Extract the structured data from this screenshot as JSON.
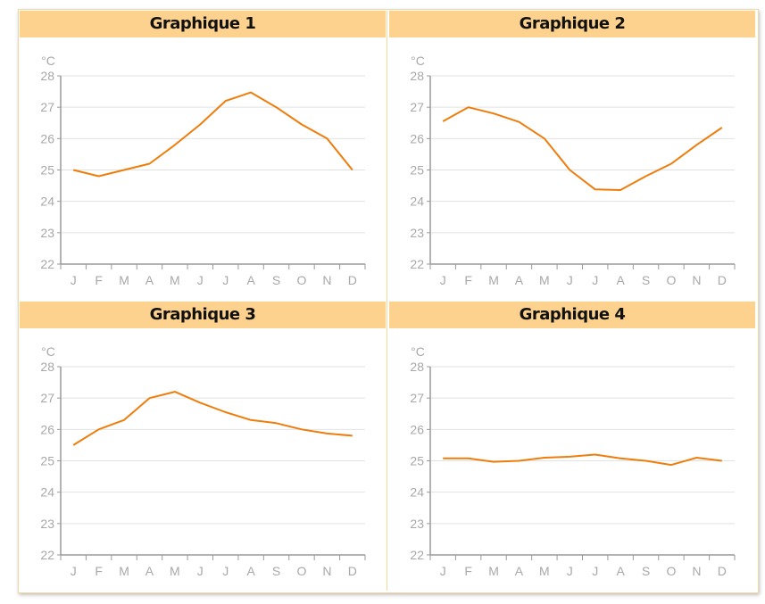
{
  "chart_data": [
    {
      "type": "line",
      "title": "Graphique 1",
      "ylabel": "°C",
      "ylim": [
        22,
        28
      ],
      "yticks": [
        22,
        23,
        24,
        25,
        26,
        27,
        28
      ],
      "grid": true,
      "categories": [
        "J",
        "F",
        "M",
        "A",
        "M",
        "J",
        "J",
        "A",
        "S",
        "O",
        "N",
        "D"
      ],
      "values": [
        25.0,
        24.8,
        25.0,
        25.2,
        25.8,
        26.45,
        27.2,
        27.47,
        27.0,
        26.45,
        26.0,
        25.0
      ]
    },
    {
      "type": "line",
      "title": "Graphique 2",
      "ylabel": "°C",
      "ylim": [
        22,
        28
      ],
      "yticks": [
        22,
        23,
        24,
        25,
        26,
        27,
        28
      ],
      "grid": true,
      "categories": [
        "J",
        "F",
        "M",
        "A",
        "M",
        "J",
        "J",
        "A",
        "S",
        "O",
        "N",
        "D"
      ],
      "values": [
        26.55,
        27.0,
        26.8,
        26.53,
        26.0,
        25.0,
        24.38,
        24.36,
        24.8,
        25.2,
        25.8,
        26.35
      ]
    },
    {
      "type": "line",
      "title": "Graphique 3",
      "ylabel": "°C",
      "ylim": [
        22,
        28
      ],
      "yticks": [
        22,
        23,
        24,
        25,
        26,
        27,
        28
      ],
      "grid": true,
      "categories": [
        "J",
        "F",
        "M",
        "A",
        "M",
        "J",
        "J",
        "A",
        "S",
        "O",
        "N",
        "D"
      ],
      "values": [
        25.5,
        26.0,
        26.3,
        27.0,
        27.2,
        26.85,
        26.55,
        26.3,
        26.2,
        26.0,
        25.87,
        25.8
      ]
    },
    {
      "type": "line",
      "title": "Graphique 4",
      "ylabel": "°C",
      "ylim": [
        22,
        28
      ],
      "yticks": [
        22,
        23,
        24,
        25,
        26,
        27,
        28
      ],
      "grid": true,
      "categories": [
        "J",
        "F",
        "M",
        "A",
        "M",
        "J",
        "J",
        "A",
        "S",
        "O",
        "N",
        "D"
      ],
      "values": [
        25.08,
        25.08,
        24.97,
        25.0,
        25.1,
        25.13,
        25.2,
        25.08,
        25.0,
        24.87,
        25.1,
        25.0
      ]
    }
  ],
  "colors": {
    "line": "#ee7d0c",
    "header": "#fdd28e",
    "axis": "#9a9a9a",
    "grid": "#e2e2e2",
    "label": "#a8a8a8"
  }
}
